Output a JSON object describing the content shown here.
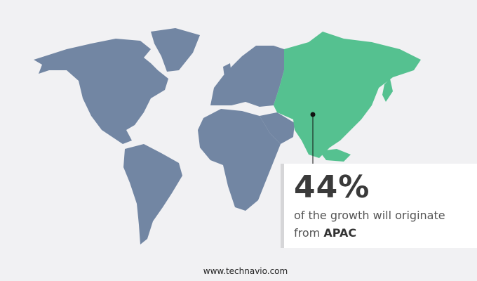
{
  "map": {
    "highlight_region": "APAC",
    "colors": {
      "base": "#7286a3",
      "highlight": "#55c190",
      "background": "#f1f1f3"
    }
  },
  "callout": {
    "value": "44%",
    "text": "of the growth will originate",
    "prefix": "from",
    "region": "APAC"
  },
  "footer": {
    "url": "www.technavio.com"
  }
}
